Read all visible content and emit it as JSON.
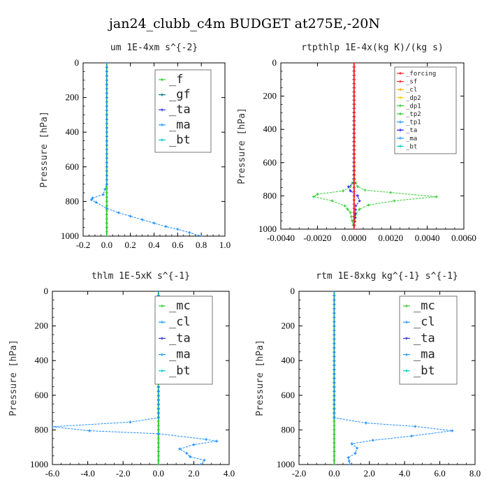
{
  "figure_title": "jan24_clubb_c4m  BUDGET at275E,-20N",
  "chart_data": [
    {
      "type": "line",
      "title": "um  1E-4xm s^{-2}",
      "ylabel": "Pressure [hPa]",
      "xlim": [
        -0.2,
        1.0
      ],
      "ylim": [
        1000,
        0
      ],
      "y_inverted": true,
      "xticks": [
        "-0.2",
        "0.0",
        "0.2",
        "0.4",
        "0.6",
        "0.8",
        "1.0"
      ],
      "yticks": [
        "0",
        "200",
        "400",
        "600",
        "800",
        "1000"
      ],
      "legend_style": "large",
      "series": [
        {
          "name": "_f",
          "color": "#33cc33",
          "zero": true
        },
        {
          "name": "_gf",
          "color": "#008080",
          "zero": true
        },
        {
          "name": "_ta",
          "color": "#3333dd",
          "zero": true
        },
        {
          "name": "_ma",
          "color": "#2299ff",
          "zero": true
        },
        {
          "name": "_bt",
          "color": "#00cccc",
          "x": [
            0.0,
            0.0,
            -0.03,
            -0.12,
            -0.13,
            -0.09,
            0.0,
            0.1,
            0.2,
            0.3,
            0.4,
            0.5,
            0.6,
            0.7,
            0.8
          ],
          "y": [
            0,
            700,
            760,
            780,
            790,
            805,
            840,
            865,
            885,
            905,
            925,
            945,
            960,
            980,
            1000
          ]
        }
      ],
      "plotted_series": [
        {
          "name": "_f",
          "color": "#33cc33",
          "zero": true
        },
        {
          "name": "_bt",
          "color": "#1a8cff",
          "x": [
            0.0,
            0.0,
            -0.03,
            -0.12,
            -0.13,
            -0.09,
            0.0,
            0.1,
            0.2,
            0.3,
            0.4,
            0.5,
            0.6,
            0.7,
            0.8
          ],
          "y": [
            0,
            700,
            760,
            780,
            790,
            805,
            840,
            865,
            885,
            905,
            925,
            945,
            960,
            980,
            1000
          ]
        }
      ]
    },
    {
      "type": "line",
      "title": "rtpthlp  1E-4x(kg K)/(kg s)",
      "ylabel": "Pressure [hPa]",
      "xlim": [
        -0.004,
        0.006
      ],
      "ylim": [
        1000,
        0
      ],
      "y_inverted": true,
      "xticks": [
        "-0.0040",
        "-0.0020",
        "0.0000",
        "0.0020",
        "0.0040",
        "0.0060"
      ],
      "yticks": [
        "0",
        "200",
        "400",
        "600",
        "800",
        "1000"
      ],
      "legend_style": "small",
      "series": [
        {
          "name": "_forcing",
          "color": "#ff2222",
          "zero": true
        },
        {
          "name": "_sf",
          "color": "#ff2222",
          "zero": true
        },
        {
          "name": "_cl",
          "color": "#ffaa00",
          "zero": true
        },
        {
          "name": "_dp2",
          "color": "#ffcc00",
          "zero": true
        },
        {
          "name": "_dp1",
          "color": "#33cc33",
          "zero": true
        },
        {
          "name": "_tp2",
          "color": "#33cc33",
          "x": [
            0.0,
            0.0,
            0.0002,
            0.0006,
            0.002,
            0.0045,
            0.0022,
            0.0008,
            0.0003,
            0.0001,
            0.0
          ],
          "y": [
            0,
            700,
            745,
            765,
            780,
            805,
            830,
            855,
            880,
            910,
            1000
          ]
        },
        {
          "name": "_tp1",
          "color": "#2299ff",
          "zero": true
        },
        {
          "name": "_ta",
          "color": "#2222ff",
          "x": [
            0.0,
            0.0,
            -0.0003,
            -0.0002,
            0.0002,
            0.0003,
            0.0001,
            0.0
          ],
          "y": [
            0,
            720,
            745,
            770,
            800,
            830,
            860,
            1000
          ]
        },
        {
          "name": "_ma",
          "color": "#2299ff",
          "zero": true
        },
        {
          "name": "_bt",
          "color": "#00cccc",
          "zero": true
        }
      ],
      "plotted_series": [
        {
          "name": "_tp2",
          "color": "#33cc33",
          "x": [
            0.0,
            0.0,
            -0.0002,
            -0.0006,
            -0.002,
            -0.0022,
            -0.0012,
            -0.0005,
            -0.0002,
            0.0
          ],
          "y": [
            0,
            700,
            745,
            770,
            790,
            805,
            830,
            860,
            900,
            1000
          ]
        },
        {
          "name": "_tp2b",
          "color": "#33cc33",
          "x": [
            0.0,
            0.0,
            0.0002,
            0.0006,
            0.002,
            0.0045,
            0.0022,
            0.0008,
            0.0003,
            0.0001,
            0.0
          ],
          "y": [
            0,
            700,
            745,
            765,
            780,
            805,
            830,
            855,
            880,
            910,
            1000
          ]
        },
        {
          "name": "_ta",
          "color": "#2222ff",
          "x": [
            0.0,
            0.0,
            -0.0003,
            -0.0002,
            0.0002,
            0.0003,
            0.0001,
            0.0
          ],
          "y": [
            0,
            720,
            745,
            770,
            800,
            830,
            860,
            1000
          ]
        },
        {
          "name": "_forcing",
          "color": "#ff2222",
          "zero": true
        }
      ]
    },
    {
      "type": "line",
      "title": "thlm  1E-5xK s^{-1}",
      "ylabel": "Pressure [hPa]",
      "xlim": [
        -6.0,
        4.0
      ],
      "ylim": [
        1000,
        0
      ],
      "y_inverted": true,
      "xticks": [
        "-6.0",
        "-4.0",
        "-2.0",
        "0.0",
        "2.0",
        "4.0"
      ],
      "yticks": [
        "0",
        "200",
        "400",
        "600",
        "800",
        "1000"
      ],
      "legend_style": "large",
      "series": [
        {
          "name": "_mc",
          "color": "#33cc33",
          "zero": true
        },
        {
          "name": "_cl",
          "color": "#2299ff",
          "zero": true
        },
        {
          "name": "_ta",
          "color": "#3333dd",
          "zero": true
        },
        {
          "name": "_ma",
          "color": "#2299ff",
          "zero": true
        },
        {
          "name": "_bt",
          "color": "#00cccc",
          "x": [
            0.0,
            0.0,
            -1.6,
            -6.0,
            -3.9,
            0.0,
            2.7,
            3.3,
            2.0,
            1.2,
            1.6,
            1.8,
            2.6,
            2.4
          ],
          "y": [
            0,
            730,
            755,
            782,
            805,
            822,
            855,
            865,
            885,
            910,
            935,
            955,
            975,
            1000
          ]
        }
      ],
      "plotted_series": [
        {
          "name": "_mc",
          "color": "#33cc33",
          "zero": true
        },
        {
          "name": "_bt",
          "color": "#1a8cff",
          "x": [
            0.0,
            0.0,
            -1.6,
            -6.0,
            -3.9,
            0.0,
            2.7,
            3.3,
            2.0,
            1.2,
            1.6,
            1.8,
            2.6,
            2.4
          ],
          "y": [
            0,
            730,
            755,
            782,
            805,
            822,
            855,
            865,
            885,
            910,
            935,
            955,
            975,
            1000
          ]
        }
      ]
    },
    {
      "type": "line",
      "title": "rtm  1E-8xkg kg^{-1} s^{-1}",
      "ylabel": "Pressure [hPa]",
      "xlim": [
        -2.0,
        8.0
      ],
      "ylim": [
        1000,
        0
      ],
      "y_inverted": true,
      "xticks": [
        "-2.0",
        "0.0",
        "2.0",
        "4.0",
        "6.0",
        "8.0"
      ],
      "yticks": [
        "0",
        "200",
        "400",
        "600",
        "800",
        "1000"
      ],
      "legend_style": "large",
      "series": [
        {
          "name": "_mc",
          "color": "#33cc33",
          "zero": true
        },
        {
          "name": "_cl",
          "color": "#2299ff",
          "zero": true
        },
        {
          "name": "_ta",
          "color": "#3333dd",
          "zero": true
        },
        {
          "name": "_ma",
          "color": "#2299ff",
          "zero": true
        },
        {
          "name": "_bt",
          "color": "#00cccc",
          "x": [
            0.0,
            0.0,
            1.8,
            4.6,
            6.7,
            4.4,
            2.2,
            1.0,
            1.3,
            1.2,
            0.8,
            0.9
          ],
          "y": [
            0,
            730,
            760,
            780,
            805,
            835,
            860,
            880,
            905,
            935,
            960,
            1000
          ]
        }
      ],
      "plotted_series": [
        {
          "name": "_mc",
          "color": "#33cc33",
          "zero": true
        },
        {
          "name": "_bt",
          "color": "#1a8cff",
          "x": [
            0.0,
            0.0,
            1.8,
            4.6,
            6.7,
            4.4,
            2.2,
            1.0,
            1.3,
            1.2,
            0.8,
            0.9
          ],
          "y": [
            0,
            730,
            760,
            780,
            805,
            835,
            860,
            880,
            905,
            935,
            960,
            1000
          ]
        }
      ]
    }
  ]
}
